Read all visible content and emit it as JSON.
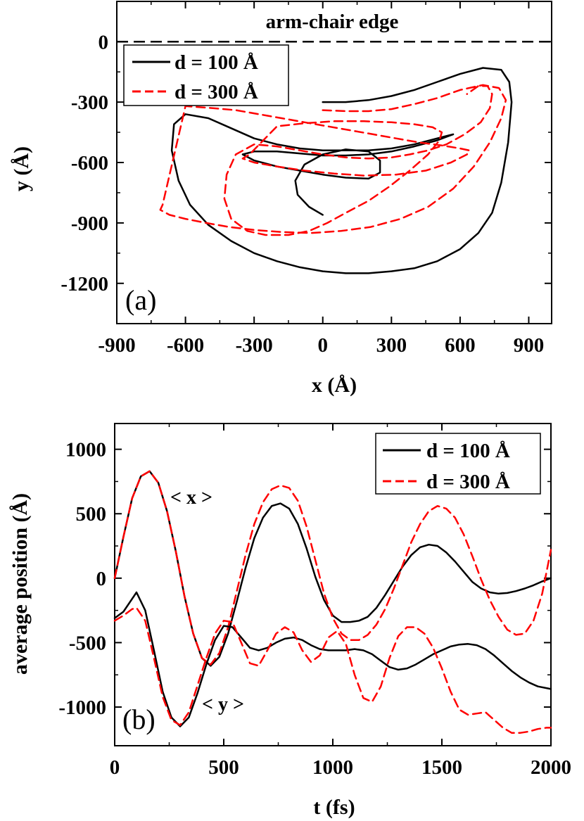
{
  "chart_data": [
    {
      "id": "a",
      "type": "line",
      "panel_label": "(a)",
      "xlabel": "x (Å)",
      "ylabel": "y (Å)",
      "xlim": [
        -900,
        1000
      ],
      "ylim": [
        -1400,
        200
      ],
      "xticks": [
        -900,
        -600,
        -300,
        0,
        300,
        600,
        900
      ],
      "yticks": [
        0,
        -300,
        -600,
        -900,
        -1200
      ],
      "xtick_labels": [
        "-900",
        "-600",
        "-300",
        "0",
        "300",
        "600",
        "900"
      ],
      "ytick_labels": [
        "0",
        "-300",
        "-600",
        "-900",
        "-1200"
      ],
      "hline": {
        "y": 0,
        "style": "dashed",
        "label": "arm-chair edge"
      },
      "legend": {
        "position": "top-left",
        "entries": [
          "d = 100 Å",
          "d = 300 Å"
        ]
      },
      "series": [
        {
          "name": "d = 100 Å",
          "color": "#000000",
          "style": "solid",
          "x": [
            0,
            100,
            200,
            300,
            400,
            500,
            600,
            700,
            780,
            815,
            825,
            810,
            780,
            740,
            680,
            600,
            500,
            400,
            300,
            200,
            100,
            0,
            -100,
            -200,
            -300,
            -400,
            -500,
            -580,
            -630,
            -660,
            -650,
            -600,
            -500,
            -400,
            -300,
            -200,
            -100,
            0,
            100,
            200,
            300,
            400,
            500,
            570,
            500,
            400,
            300,
            200,
            100,
            0,
            -100,
            -200,
            -300,
            -350,
            -300,
            -200,
            -100,
            0,
            100,
            200,
            250,
            250,
            200,
            100,
            0,
            -80,
            -120,
            -110,
            -60,
            0
          ],
          "y": [
            -300,
            -300,
            -290,
            -270,
            -240,
            -200,
            -160,
            -130,
            -140,
            -200,
            -300,
            -500,
            -700,
            -850,
            -950,
            -1030,
            -1090,
            -1125,
            -1140,
            -1150,
            -1150,
            -1140,
            -1120,
            -1090,
            -1050,
            -990,
            -910,
            -810,
            -690,
            -540,
            -410,
            -360,
            -380,
            -430,
            -480,
            -510,
            -530,
            -540,
            -540,
            -540,
            -530,
            -510,
            -480,
            -460,
            -490,
            -520,
            -545,
            -560,
            -565,
            -565,
            -555,
            -545,
            -545,
            -560,
            -590,
            -620,
            -640,
            -660,
            -675,
            -680,
            -650,
            -590,
            -545,
            -535,
            -560,
            -610,
            -690,
            -760,
            -820,
            -860
          ]
        },
        {
          "name": "d = 300 Å",
          "color": "#ff0000",
          "style": "dashed",
          "x": [
            0,
            100,
            200,
            300,
            400,
            500,
            600,
            700,
            770,
            800,
            780,
            730,
            660,
            570,
            460,
            340,
            210,
            80,
            -50,
            -180,
            -300,
            -410,
            -510,
            -600,
            -670,
            -710,
            -700,
            -600,
            -480,
            -380,
            -280,
            -180,
            -80,
            20,
            120,
            220,
            320,
            420,
            520,
            600,
            640,
            630,
            560,
            450,
            320,
            180,
            50,
            -80,
            -200,
            -300,
            -350,
            -320,
            -200,
            -80,
            50,
            180,
            300,
            400,
            480,
            520,
            510,
            460,
            380,
            290,
            200,
            100,
            20,
            -60,
            -150,
            -250,
            -330,
            -400,
            -430,
            -420,
            -380,
            -300,
            -200,
            -100,
            0,
            100,
            200,
            300,
            380,
            460,
            540,
            620,
            690,
            730,
            740,
            720,
            680,
            630
          ],
          "y": [
            -340,
            -345,
            -345,
            -335,
            -310,
            -280,
            -240,
            -215,
            -230,
            -290,
            -380,
            -500,
            -620,
            -730,
            -820,
            -880,
            -920,
            -940,
            -950,
            -945,
            -935,
            -920,
            -900,
            -880,
            -860,
            -835,
            -810,
            -320,
            -330,
            -340,
            -360,
            -380,
            -400,
            -420,
            -440,
            -460,
            -480,
            -500,
            -515,
            -530,
            -540,
            -560,
            -600,
            -640,
            -660,
            -665,
            -655,
            -640,
            -620,
            -600,
            -580,
            -560,
            -420,
            -405,
            -395,
            -395,
            -400,
            -410,
            -425,
            -450,
            -490,
            -560,
            -640,
            -720,
            -790,
            -850,
            -900,
            -940,
            -960,
            -960,
            -940,
            -880,
            -780,
            -660,
            -560,
            -510,
            -520,
            -540,
            -560,
            -575,
            -580,
            -575,
            -560,
            -540,
            -510,
            -460,
            -400,
            -330,
            -260,
            -220,
            -220,
            -260
          ]
        }
      ]
    },
    {
      "id": "b",
      "type": "line",
      "panel_label": "(b)",
      "xlabel": "t (fs)",
      "ylabel": "average position (Å)",
      "xlim": [
        0,
        2000
      ],
      "ylim": [
        -1300,
        1200
      ],
      "xticks": [
        0,
        500,
        1000,
        1500,
        2000
      ],
      "yticks": [
        1000,
        500,
        0,
        -500,
        -1000
      ],
      "xtick_labels": [
        "0",
        "500",
        "1000",
        "1500",
        "2000"
      ],
      "ytick_labels": [
        "1000",
        "500",
        "0",
        "-500",
        "-1000"
      ],
      "annotations": [
        "< x >",
        "< y >"
      ],
      "legend": {
        "position": "top-right",
        "entries": [
          "d = 100 Å",
          "d = 300 Å"
        ]
      },
      "series": [
        {
          "name": "d = 100 Å <x>",
          "color": "#000000",
          "style": "solid",
          "x": [
            0,
            40,
            80,
            120,
            160,
            200,
            240,
            280,
            320,
            360,
            400,
            440,
            480,
            520,
            560,
            600,
            640,
            680,
            720,
            760,
            800,
            840,
            880,
            920,
            960,
            1000,
            1040,
            1080,
            1120,
            1160,
            1200,
            1240,
            1280,
            1320,
            1360,
            1400,
            1440,
            1480,
            1520,
            1560,
            1600,
            1640,
            1680,
            1720,
            1760,
            1800,
            1840,
            1880,
            1920,
            1960,
            2000
          ],
          "y": [
            0,
            320,
            620,
            790,
            830,
            740,
            520,
            210,
            -140,
            -430,
            -620,
            -680,
            -610,
            -430,
            -180,
            80,
            310,
            470,
            560,
            580,
            540,
            420,
            230,
            10,
            -170,
            -290,
            -340,
            -340,
            -330,
            -300,
            -230,
            -130,
            -20,
            90,
            180,
            240,
            260,
            250,
            200,
            130,
            50,
            -30,
            -80,
            -110,
            -120,
            -115,
            -100,
            -80,
            -55,
            -25,
            0
          ]
        },
        {
          "name": "d = 300 Å <x>",
          "color": "#ff0000",
          "style": "dashed",
          "x": [
            0,
            40,
            80,
            120,
            160,
            200,
            240,
            280,
            320,
            360,
            400,
            440,
            480,
            520,
            560,
            600,
            640,
            680,
            720,
            760,
            800,
            840,
            880,
            920,
            960,
            1000,
            1040,
            1080,
            1120,
            1160,
            1200,
            1240,
            1280,
            1320,
            1360,
            1400,
            1440,
            1480,
            1520,
            1560,
            1600,
            1640,
            1680,
            1720,
            1760,
            1800,
            1840,
            1880,
            1920,
            1960,
            2000
          ],
          "y": [
            0,
            320,
            620,
            790,
            830,
            740,
            520,
            210,
            -140,
            -430,
            -620,
            -670,
            -580,
            -380,
            -100,
            180,
            420,
            590,
            690,
            720,
            700,
            600,
            400,
            140,
            -120,
            -310,
            -430,
            -480,
            -480,
            -440,
            -360,
            -240,
            -80,
            100,
            280,
            420,
            520,
            560,
            540,
            470,
            340,
            170,
            -10,
            -170,
            -300,
            -400,
            -440,
            -430,
            -330,
            -120,
            220
          ]
        },
        {
          "name": "d = 100 Å <y>",
          "color": "#000000",
          "style": "solid",
          "x": [
            0,
            40,
            80,
            100,
            140,
            180,
            220,
            260,
            300,
            340,
            380,
            420,
            460,
            500,
            540,
            580,
            620,
            660,
            700,
            740,
            780,
            820,
            860,
            900,
            940,
            980,
            1020,
            1060,
            1100,
            1140,
            1180,
            1220,
            1260,
            1300,
            1340,
            1380,
            1420,
            1460,
            1500,
            1540,
            1580,
            1620,
            1660,
            1700,
            1740,
            1780,
            1820,
            1860,
            1900,
            1940,
            2000
          ],
          "y": [
            -310,
            -260,
            -160,
            -110,
            -250,
            -560,
            -880,
            -1080,
            -1150,
            -1080,
            -890,
            -670,
            -480,
            -370,
            -380,
            -460,
            -540,
            -560,
            -540,
            -500,
            -470,
            -460,
            -480,
            -520,
            -550,
            -560,
            -560,
            -560,
            -550,
            -560,
            -590,
            -640,
            -690,
            -710,
            -700,
            -670,
            -630,
            -590,
            -560,
            -530,
            -515,
            -510,
            -520,
            -550,
            -600,
            -660,
            -720,
            -770,
            -810,
            -840,
            -860
          ]
        },
        {
          "name": "d = 300 Å <y>",
          "color": "#ff0000",
          "style": "dashed",
          "x": [
            0,
            40,
            80,
            100,
            140,
            180,
            220,
            260,
            300,
            340,
            380,
            420,
            460,
            500,
            540,
            580,
            620,
            660,
            700,
            740,
            780,
            820,
            860,
            900,
            940,
            980,
            1020,
            1060,
            1100,
            1140,
            1180,
            1220,
            1260,
            1300,
            1340,
            1380,
            1420,
            1460,
            1500,
            1540,
            1580,
            1620,
            1660,
            1700,
            1740,
            1780,
            1820,
            1860,
            1900,
            1940,
            1980,
            2000
          ],
          "y": [
            -330,
            -290,
            -240,
            -230,
            -330,
            -620,
            -920,
            -1100,
            -1140,
            -1040,
            -830,
            -620,
            -430,
            -330,
            -340,
            -500,
            -660,
            -680,
            -560,
            -430,
            -380,
            -420,
            -560,
            -650,
            -600,
            -460,
            -410,
            -510,
            -750,
            -930,
            -960,
            -840,
            -620,
            -450,
            -380,
            -380,
            -430,
            -540,
            -700,
            -880,
            -1020,
            -1060,
            -1050,
            -1040,
            -1100,
            -1160,
            -1200,
            -1200,
            -1190,
            -1170,
            -1160,
            -1160
          ]
        }
      ]
    }
  ]
}
